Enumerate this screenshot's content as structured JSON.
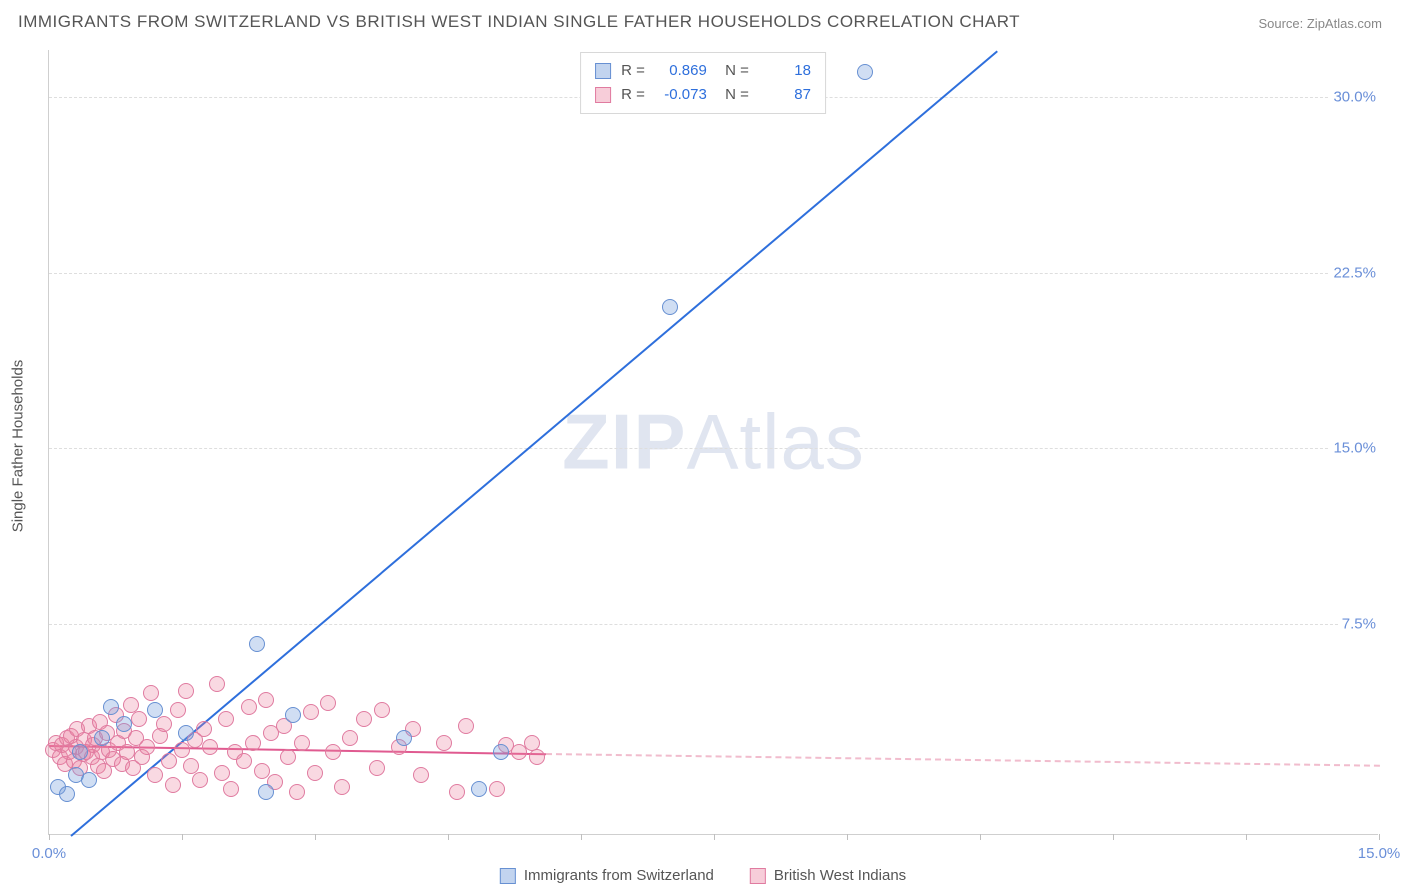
{
  "title": "IMMIGRANTS FROM SWITZERLAND VS BRITISH WEST INDIAN SINGLE FATHER HOUSEHOLDS CORRELATION CHART",
  "source_label": "Source: ",
  "source_name": "ZipAtlas.com",
  "yaxis_label": "Single Father Households",
  "watermark_a": "ZIP",
  "watermark_b": "Atlas",
  "chart": {
    "type": "scatter",
    "background_color": "#ffffff",
    "grid_color": "#dedede",
    "axis_color": "#cfcfcf",
    "xlim": [
      0,
      15
    ],
    "ylim": [
      -1.5,
      32
    ],
    "xticks": [
      0,
      1.5,
      3.0,
      4.5,
      6.0,
      7.5,
      9.0,
      10.5,
      12.0,
      13.5,
      15.0
    ],
    "xtick_labels": {
      "0": "0.0%",
      "15": "15.0%"
    },
    "yticks": [
      7.5,
      15.0,
      22.5,
      30.0
    ],
    "ytick_labels": [
      "7.5%",
      "15.0%",
      "22.5%",
      "30.0%"
    ],
    "series": [
      {
        "name": "Immigrants from Switzerland",
        "color_fill": "rgba(120,160,220,0.35)",
        "color_stroke": "#6790d2",
        "marker_size": 16,
        "points": [
          [
            0.1,
            0.5
          ],
          [
            0.2,
            0.2
          ],
          [
            0.3,
            1.0
          ],
          [
            0.35,
            2.0
          ],
          [
            0.45,
            0.8
          ],
          [
            0.6,
            2.6
          ],
          [
            0.7,
            3.9
          ],
          [
            0.85,
            3.2
          ],
          [
            1.2,
            3.8
          ],
          [
            1.55,
            2.8
          ],
          [
            2.35,
            6.6
          ],
          [
            2.45,
            0.3
          ],
          [
            2.75,
            3.6
          ],
          [
            4.0,
            2.6
          ],
          [
            4.85,
            0.4
          ],
          [
            5.1,
            2.0
          ],
          [
            7.0,
            21.0
          ],
          [
            9.2,
            31.0
          ]
        ],
        "trend": {
          "color": "#2e6fdc",
          "x1": 0.25,
          "y1": -1.5,
          "x2": 10.7,
          "y2": 32
        },
        "R": "0.869",
        "N": "18"
      },
      {
        "name": "British West Indians",
        "color_fill": "rgba(235,130,160,0.30)",
        "color_stroke": "#e07ba0",
        "marker_size": 16,
        "points": [
          [
            0.05,
            2.1
          ],
          [
            0.08,
            2.4
          ],
          [
            0.12,
            1.8
          ],
          [
            0.15,
            2.3
          ],
          [
            0.18,
            1.5
          ],
          [
            0.2,
            2.6
          ],
          [
            0.22,
            2.0
          ],
          [
            0.25,
            2.7
          ],
          [
            0.28,
            1.6
          ],
          [
            0.3,
            2.2
          ],
          [
            0.32,
            3.0
          ],
          [
            0.35,
            1.3
          ],
          [
            0.38,
            1.9
          ],
          [
            0.4,
            2.5
          ],
          [
            0.42,
            2.0
          ],
          [
            0.45,
            3.1
          ],
          [
            0.48,
            1.8
          ],
          [
            0.5,
            2.3
          ],
          [
            0.52,
            2.6
          ],
          [
            0.55,
            1.4
          ],
          [
            0.58,
            3.3
          ],
          [
            0.6,
            2.0
          ],
          [
            0.62,
            1.2
          ],
          [
            0.65,
            2.8
          ],
          [
            0.68,
            2.1
          ],
          [
            0.72,
            1.7
          ],
          [
            0.75,
            3.6
          ],
          [
            0.78,
            2.4
          ],
          [
            0.82,
            1.5
          ],
          [
            0.85,
            2.9
          ],
          [
            0.88,
            2.0
          ],
          [
            0.92,
            4.0
          ],
          [
            0.95,
            1.3
          ],
          [
            0.98,
            2.6
          ],
          [
            1.02,
            3.4
          ],
          [
            1.05,
            1.8
          ],
          [
            1.1,
            2.2
          ],
          [
            1.15,
            4.5
          ],
          [
            1.2,
            1.0
          ],
          [
            1.25,
            2.7
          ],
          [
            1.3,
            3.2
          ],
          [
            1.35,
            1.6
          ],
          [
            1.4,
            0.6
          ],
          [
            1.45,
            3.8
          ],
          [
            1.5,
            2.1
          ],
          [
            1.55,
            4.6
          ],
          [
            1.6,
            1.4
          ],
          [
            1.65,
            2.5
          ],
          [
            1.7,
            0.8
          ],
          [
            1.75,
            3.0
          ],
          [
            1.82,
            2.2
          ],
          [
            1.9,
            4.9
          ],
          [
            1.95,
            1.1
          ],
          [
            2.0,
            3.4
          ],
          [
            2.05,
            0.4
          ],
          [
            2.1,
            2.0
          ],
          [
            2.2,
            1.6
          ],
          [
            2.25,
            3.9
          ],
          [
            2.3,
            2.4
          ],
          [
            2.4,
            1.2
          ],
          [
            2.45,
            4.2
          ],
          [
            2.5,
            2.8
          ],
          [
            2.55,
            0.7
          ],
          [
            2.65,
            3.1
          ],
          [
            2.7,
            1.8
          ],
          [
            2.8,
            0.3
          ],
          [
            2.85,
            2.4
          ],
          [
            2.95,
            3.7
          ],
          [
            3.0,
            1.1
          ],
          [
            3.15,
            4.1
          ],
          [
            3.2,
            2.0
          ],
          [
            3.3,
            0.5
          ],
          [
            3.4,
            2.6
          ],
          [
            3.55,
            3.4
          ],
          [
            3.7,
            1.3
          ],
          [
            3.75,
            3.8
          ],
          [
            3.95,
            2.2
          ],
          [
            4.1,
            3.0
          ],
          [
            4.2,
            1.0
          ],
          [
            4.45,
            2.4
          ],
          [
            4.6,
            0.3
          ],
          [
            4.7,
            3.1
          ],
          [
            5.05,
            0.4
          ],
          [
            5.15,
            2.3
          ],
          [
            5.3,
            2.0
          ],
          [
            5.45,
            2.4
          ],
          [
            5.5,
            1.8
          ]
        ],
        "trend": {
          "color": "#e05a90",
          "x1": 0,
          "y1": 2.35,
          "x2": 5.6,
          "y2": 2.0,
          "dash_to_x": 15,
          "dash_to_y": 1.5
        },
        "R": "-0.073",
        "N": "87"
      }
    ]
  },
  "legend_bottom": [
    {
      "label": "Immigrants from Switzerland",
      "swatch": "blue"
    },
    {
      "label": "British West Indians",
      "swatch": "pink"
    }
  ]
}
